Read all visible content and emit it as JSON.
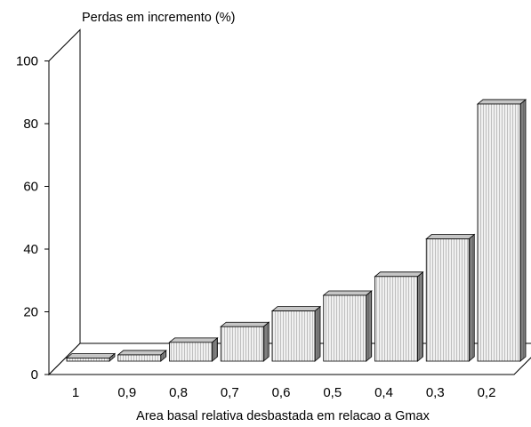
{
  "chart_data": {
    "type": "bar",
    "categories": [
      "1",
      "0,9",
      "0,8",
      "0,7",
      "0,6",
      "0,5",
      "0,4",
      "0,3",
      "0,2"
    ],
    "values": [
      1,
      2,
      6,
      11,
      16,
      21,
      27,
      39,
      82
    ],
    "ylabel": "Perdas em incremento (%)",
    "xlabel": "Area basal relativa desbastada em relacao a Gmax",
    "ylim": [
      0,
      100
    ],
    "yticks": [
      0,
      20,
      40,
      60,
      80,
      100
    ],
    "ytick_labels": [
      "0",
      "20",
      "40",
      "60",
      "80",
      "100"
    ],
    "three_d": true,
    "grid": false
  },
  "colors": {
    "bar_front": "#f0f0f0",
    "bar_stripe": "#a9a9a9",
    "bar_side": "#808080",
    "bar_top": "#c6c6c6",
    "axis": "#000000",
    "background": "#ffffff"
  }
}
